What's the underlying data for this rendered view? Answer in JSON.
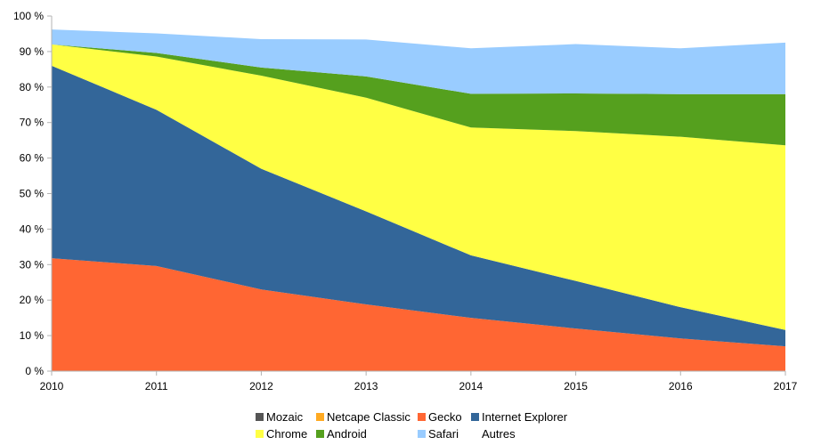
{
  "chart_data": {
    "type": "area",
    "stacked": true,
    "x": [
      "2010",
      "2011",
      "2012",
      "2013",
      "2014",
      "2015",
      "2016",
      "2017"
    ],
    "ylim": [
      0,
      100
    ],
    "yticks": [
      0,
      10,
      20,
      30,
      40,
      50,
      60,
      70,
      80,
      90,
      100
    ],
    "ytick_suffix": " %",
    "grid": false,
    "legend_position": "bottom",
    "series": [
      {
        "name": "Gecko",
        "color": "#ff6633",
        "values": [
          31.8,
          29.6,
          23,
          18.8,
          15,
          12,
          9.2,
          7
        ]
      },
      {
        "name": "Internet Explorer",
        "color": "#336699",
        "values": [
          54.2,
          44,
          34,
          26.2,
          17.6,
          13.4,
          8.8,
          4.6
        ]
      },
      {
        "name": "Chrome",
        "color": "#ffff44",
        "values": [
          6,
          15,
          26.2,
          32,
          36,
          42.2,
          48,
          52
        ]
      },
      {
        "name": "Android",
        "color": "#55a01e",
        "values": [
          0,
          1,
          2.3,
          6,
          9.5,
          10.6,
          12,
          14.4
        ]
      },
      {
        "name": "Safari",
        "color": "#99ccff",
        "values": [
          4.2,
          5.5,
          8,
          10.4,
          12.8,
          13.9,
          12.9,
          14.5
        ]
      },
      {
        "name": "Mozaic",
        "color": "#555555",
        "values": [
          0,
          0,
          0,
          0,
          0,
          0,
          0,
          0
        ]
      },
      {
        "name": "Netcape Classic",
        "color": "#ffaa22",
        "values": [
          0,
          0,
          0,
          0,
          0,
          0,
          0,
          0
        ]
      },
      {
        "name": "Autres",
        "color": "#ffffff",
        "values": [
          0,
          0,
          0,
          0,
          0,
          0,
          0,
          0
        ]
      }
    ],
    "legend_order": [
      "Mozaic",
      "Netcape Classic",
      "Gecko",
      "Internet Explorer",
      "Chrome",
      "Android",
      "Safari",
      "Autres"
    ],
    "stack_order": [
      "Gecko",
      "Internet Explorer",
      "Chrome",
      "Android",
      "Safari"
    ]
  }
}
